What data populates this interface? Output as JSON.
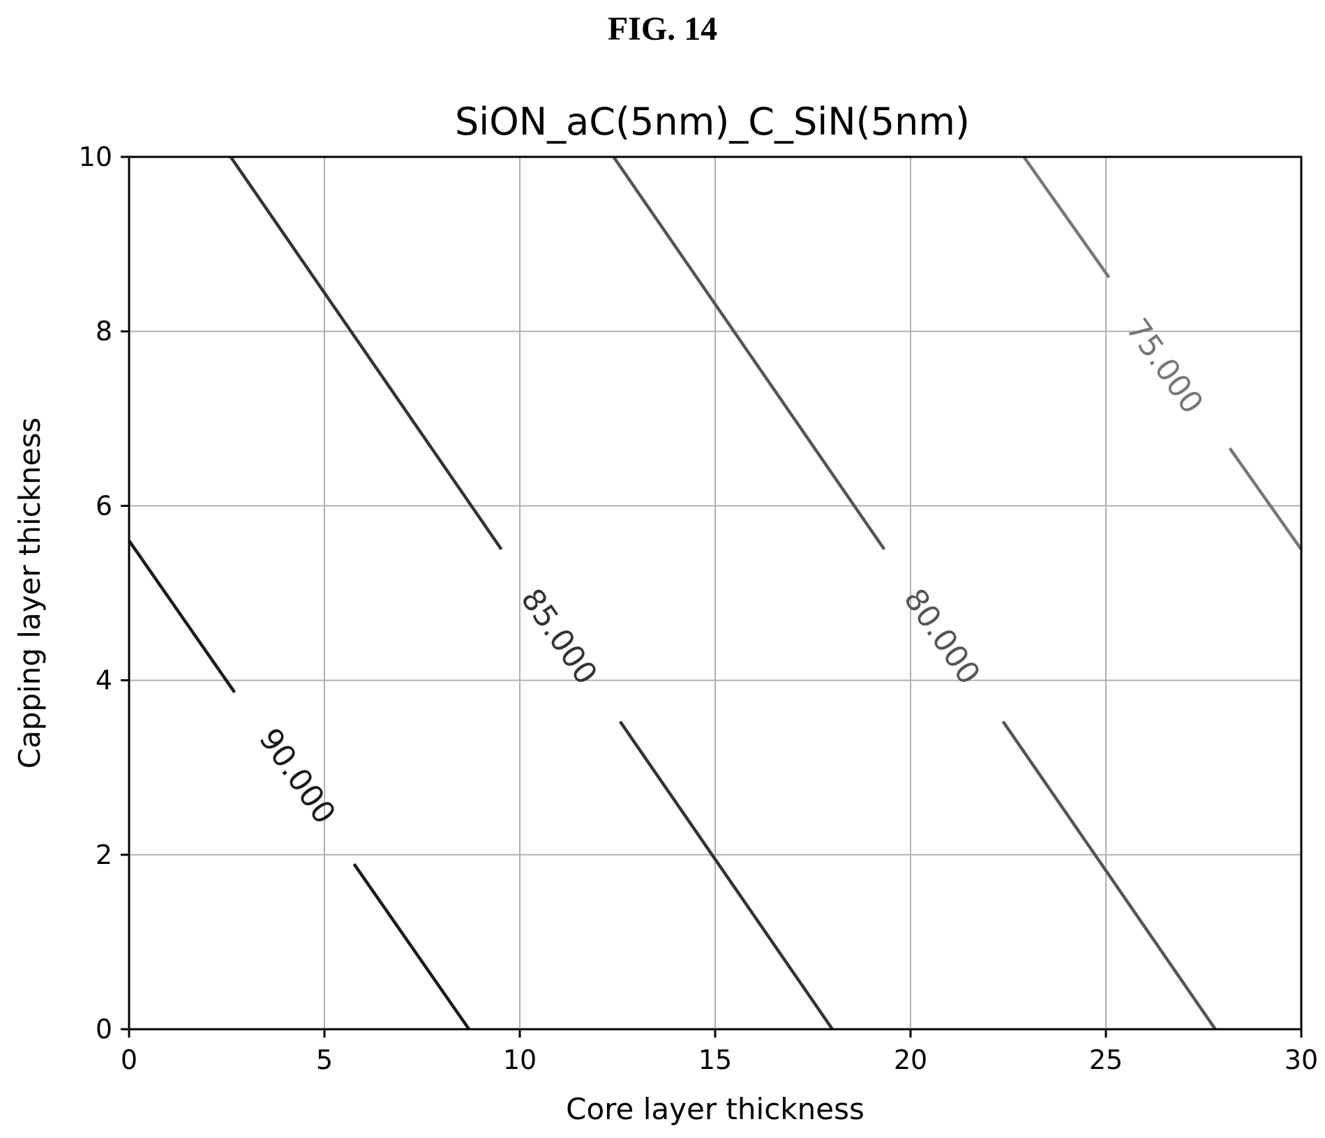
{
  "figure_label": "FIG. 14",
  "chart_data": {
    "type": "contour",
    "title": "SiON_aC(5nm)_C_SiN(5nm)",
    "xlabel": "Core layer thickness",
    "ylabel": "Capping layer thickness",
    "xlim": [
      0,
      30
    ],
    "ylim": [
      0,
      10
    ],
    "xticks": [
      0,
      5,
      10,
      15,
      20,
      25,
      30
    ],
    "yticks": [
      0,
      2,
      4,
      6,
      8,
      10
    ],
    "grid": true,
    "colors": {
      "90.000": "#1a1a1a",
      "85.000": "#333333",
      "80.000": "#555555",
      "75.000": "#777777"
    },
    "contours": [
      {
        "level": "90.000",
        "points": [
          [
            0,
            5.6
          ],
          [
            8.7,
            0
          ]
        ],
        "label_at": [
          4.3,
          2.9
        ]
      },
      {
        "level": "85.000",
        "points": [
          [
            2.6,
            10
          ],
          [
            18.0,
            0
          ]
        ],
        "label_at": [
          11.0,
          4.5
        ]
      },
      {
        "level": "80.000",
        "points": [
          [
            12.4,
            10
          ],
          [
            27.8,
            0
          ]
        ],
        "label_at": [
          20.8,
          4.5
        ]
      },
      {
        "level": "75.000",
        "points": [
          [
            22.9,
            10
          ],
          [
            30,
            5.5
          ]
        ],
        "label_at": [
          26.5,
          7.6
        ]
      }
    ]
  }
}
